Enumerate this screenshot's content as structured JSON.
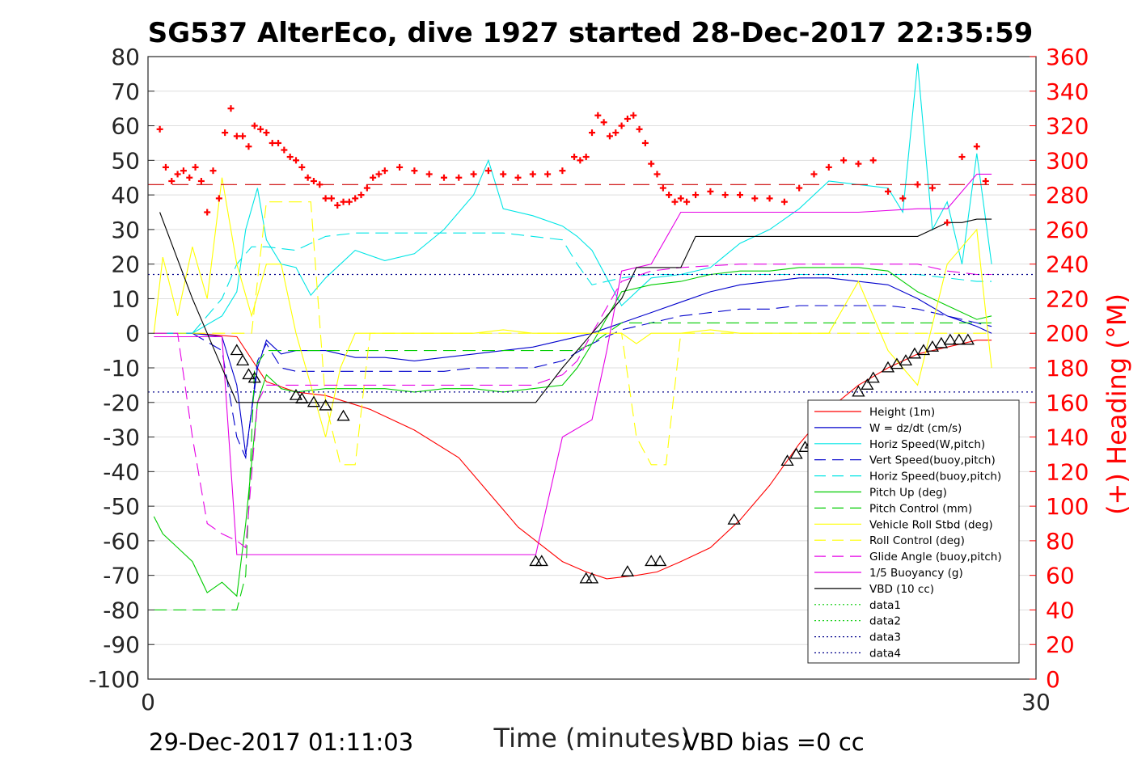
{
  "chart_data": {
    "type": "line",
    "title": "SG537 AlterEco, dive 1927 started 28-Dec-2017 22:35:59",
    "xlabel": "Time (minutes)",
    "ylabel_right": "(+) Heading (°M)",
    "xlim": [
      0,
      30
    ],
    "ylim": [
      -100,
      80
    ],
    "ylim_right": [
      0,
      360
    ],
    "x_ticks": [
      "0",
      "30"
    ],
    "y_ticks": [
      "80",
      "70",
      "60",
      "50",
      "40",
      "30",
      "20",
      "10",
      "0",
      "-10",
      "-20",
      "-30",
      "-40",
      "-50",
      "-60",
      "-70",
      "-80",
      "-90",
      "-100"
    ],
    "y_ticks_right": [
      "360",
      "340",
      "320",
      "300",
      "280",
      "260",
      "240",
      "220",
      "200",
      "180",
      "160",
      "140",
      "120",
      "100",
      "80",
      "60",
      "40",
      "20",
      "0"
    ],
    "grid": true,
    "legend_position": "bottom-right",
    "footer_left": "29-Dec-2017 01:11:03",
    "footer_right": "VBD bias =0 cc",
    "series": [
      {
        "name": "Height (1m)",
        "color": "#ff0000",
        "dash": "solid",
        "x": [
          0.2,
          1.5,
          3.0,
          4.0,
          5.0,
          6.0,
          7.5,
          9.0,
          10.5,
          11.5,
          12.5,
          13.1,
          14.0,
          14.8,
          15.5,
          16.5,
          17.2,
          18.0,
          19.0,
          20.0,
          21.0,
          22.0,
          23.0,
          24.0,
          25.0,
          26.0,
          27.0,
          28.0,
          28.5
        ],
        "y": [
          0,
          0,
          -1,
          -14,
          -17,
          -18,
          -22,
          -28,
          -36,
          -46,
          -56,
          -60,
          -66,
          -69,
          -71,
          -70,
          -69,
          -66,
          -62,
          -54,
          -44,
          -32,
          -22,
          -15,
          -10,
          -6,
          -4,
          -2,
          -2
        ]
      },
      {
        "name": "W = dz/dt (cm/s)",
        "color": "#0000cc",
        "dash": "solid",
        "x": [
          0.2,
          1.5,
          2.5,
          3.0,
          3.3,
          3.7,
          4.0,
          4.5,
          5.0,
          6.0,
          7.0,
          8.0,
          9.0,
          10.0,
          11.0,
          12.0,
          13.0,
          14.0,
          15.0,
          16.0,
          17.0,
          18.0,
          19.0,
          20.0,
          21.0,
          22.0,
          23.0,
          24.0,
          25.0,
          26.0,
          27.0,
          28.0,
          28.5
        ],
        "y": [
          0,
          0,
          -1,
          -15,
          -35,
          -10,
          -2,
          -6,
          -5,
          -5,
          -7,
          -7,
          -8,
          -7,
          -6,
          -5,
          -4,
          -2,
          0,
          3,
          6,
          9,
          12,
          14,
          15,
          16,
          16,
          15,
          14,
          10,
          5,
          2,
          0
        ]
      },
      {
        "name": "Horiz Speed(W,pitch)",
        "color": "#00e5e5",
        "dash": "solid",
        "x": [
          0.2,
          1.5,
          2.5,
          3.0,
          3.3,
          3.7,
          4.0,
          4.5,
          5.0,
          5.5,
          6.0,
          7.0,
          8.0,
          9.0,
          10.0,
          11.0,
          11.5,
          12.0,
          13.0,
          14.0,
          14.5,
          15.0,
          16.0,
          17.0,
          18.0,
          19.0,
          20.0,
          21.0,
          22.0,
          23.0,
          24.0,
          25.0,
          25.5,
          26.0,
          26.5,
          27.0,
          27.5,
          28.0,
          28.5
        ],
        "y": [
          0,
          0,
          5,
          12,
          30,
          42,
          27,
          20,
          19,
          11,
          16,
          24,
          21,
          23,
          30,
          40,
          50,
          36,
          34,
          31,
          28,
          24,
          8,
          16,
          17,
          19,
          26,
          30,
          36,
          44,
          43,
          42,
          35,
          78,
          30,
          38,
          20,
          52,
          20
        ]
      },
      {
        "name": "Vert Speed(buoy,pitch)",
        "color": "#0000cc",
        "dash": "dashed",
        "x": [
          0.2,
          1.5,
          2.5,
          3.0,
          3.3,
          3.7,
          4.0,
          4.5,
          5.0,
          6.0,
          7.0,
          8.0,
          9.0,
          10.0,
          11.0,
          12.0,
          13.0,
          14.0,
          15.0,
          16.0,
          17.0,
          18.0,
          19.0,
          20.0,
          21.0,
          22.0,
          23.0,
          24.0,
          25.0,
          26.0,
          27.0,
          28.0,
          28.5
        ],
        "y": [
          0,
          0,
          -5,
          -30,
          -36,
          -8,
          -3,
          -10,
          -11,
          -11,
          -11,
          -11,
          -11,
          -11,
          -10,
          -10,
          -10,
          -8,
          -3,
          1,
          3,
          5,
          6,
          7,
          7,
          8,
          8,
          8,
          8,
          7,
          5,
          3,
          2
        ]
      },
      {
        "name": "Horiz Speed(buoy,pitch)",
        "color": "#00e5e5",
        "dash": "dashed",
        "x": [
          0.2,
          1.5,
          2.5,
          3.0,
          3.5,
          4.0,
          5.0,
          6.0,
          7.0,
          8.0,
          9.0,
          10.0,
          11.0,
          12.0,
          13.0,
          14.0,
          14.5,
          15.0,
          16.0,
          17.0,
          18.0,
          19.0,
          20.0,
          21.0,
          22.0,
          23.0,
          24.0,
          25.0,
          26.0,
          27.0,
          28.0,
          28.5
        ],
        "y": [
          0,
          0,
          10,
          20,
          25,
          25,
          24,
          28,
          29,
          29,
          29,
          29,
          29,
          29,
          28,
          27,
          20,
          14,
          16,
          17,
          17,
          17,
          17,
          17,
          17,
          17,
          17,
          17,
          17,
          16,
          15,
          15
        ]
      },
      {
        "name": "Pitch Up (deg)",
        "color": "#00cc00",
        "dash": "solid",
        "x": [
          0.2,
          0.5,
          1.0,
          1.5,
          2.0,
          2.5,
          3.0,
          3.3,
          3.7,
          4.0,
          4.5,
          5.0,
          6.0,
          7.0,
          8.0,
          9.0,
          10.0,
          11.0,
          12.0,
          13.0,
          14.0,
          14.5,
          15.0,
          16.0,
          17.0,
          18.0,
          19.0,
          20.0,
          21.0,
          22.0,
          23.0,
          24.0,
          25.0,
          26.0,
          27.0,
          28.0,
          28.5
        ],
        "y": [
          -53,
          -58,
          -62,
          -66,
          -75,
          -72,
          -76,
          -55,
          -20,
          -12,
          -16,
          -17,
          -16,
          -16,
          -16,
          -17,
          -16,
          -16,
          -17,
          -16,
          -15,
          -10,
          -3,
          12,
          14,
          15,
          17,
          18,
          18,
          19,
          19,
          19,
          18,
          12,
          8,
          4,
          5
        ]
      },
      {
        "name": "Pitch Control (mm)",
        "color": "#00cc00",
        "dash": "dashed",
        "x": [
          0.2,
          2.0,
          3.0,
          3.3,
          3.6,
          4.0,
          5.0,
          6.0,
          8.0,
          10.0,
          12.0,
          13.0,
          14.0,
          14.5,
          15.0,
          16.0,
          17.0,
          18.0,
          20.0,
          22.0,
          23.0,
          24.0,
          25.0,
          26.0,
          27.0,
          28.0,
          28.5
        ],
        "y": [
          -80,
          -80,
          -80,
          -70,
          -10,
          -5,
          -5,
          -5,
          -5,
          -5,
          -5,
          -5,
          -5,
          -5,
          -3,
          3,
          3,
          3,
          3,
          3,
          3,
          3,
          3,
          3,
          3,
          3,
          3
        ]
      },
      {
        "name": "Vehicle Roll Stbd (deg)",
        "color": "#ffff00",
        "dash": "solid",
        "x": [
          0.2,
          0.5,
          1.0,
          1.5,
          2.0,
          2.5,
          3.0,
          3.5,
          4.0,
          4.5,
          5.0,
          5.5,
          6.0,
          6.5,
          7.0,
          8.0,
          9.0,
          10.0,
          11.0,
          12.0,
          13.0,
          14.0,
          15.0,
          16.0,
          16.5,
          17.0,
          18.0,
          19.0,
          20.0,
          21.0,
          22.0,
          23.0,
          24.0,
          25.0,
          26.0,
          27.0,
          28.0,
          28.5
        ],
        "y": [
          0,
          22,
          5,
          25,
          10,
          45,
          20,
          5,
          20,
          20,
          0,
          -15,
          -30,
          -10,
          0,
          0,
          0,
          0,
          0,
          1,
          0,
          0,
          0,
          0,
          -3,
          0,
          0,
          1,
          0,
          0,
          0,
          0,
          15,
          -5,
          -15,
          20,
          30,
          -10
        ]
      },
      {
        "name": "Roll Control (deg)",
        "color": "#ffff00",
        "dash": "dashed",
        "x": [
          0.2,
          2.0,
          3.5,
          4.0,
          5.0,
          5.5,
          6.0,
          6.5,
          7.0,
          7.5,
          8.0,
          10.0,
          12.0,
          13.0,
          14.0,
          15.0,
          16.0,
          16.5,
          17.0,
          17.5,
          18.0,
          20.0,
          22.0,
          23.0,
          24.0,
          25.0,
          26.0,
          27.0,
          28.0,
          28.5
        ],
        "y": [
          0,
          0,
          0,
          38,
          38,
          38,
          -20,
          -38,
          -38,
          0,
          0,
          0,
          0,
          0,
          0,
          0,
          0,
          -30,
          -38,
          -38,
          0,
          0,
          0,
          0,
          0,
          0,
          0,
          0,
          0,
          0
        ]
      },
      {
        "name": "Glide Angle (buoy,pitch)",
        "color": "#e500e5",
        "dash": "dashed",
        "x": [
          0.2,
          1.0,
          1.5,
          2.0,
          2.5,
          3.0,
          3.3,
          3.7,
          4.0,
          4.5,
          5.0,
          6.0,
          8.0,
          10.0,
          12.0,
          13.0,
          14.0,
          14.5,
          15.0,
          16.0,
          17.0,
          18.0,
          20.0,
          22.0,
          24.0,
          25.0,
          26.0,
          27.0,
          28.0,
          28.5
        ],
        "y": [
          0,
          0,
          -30,
          -55,
          -58,
          -60,
          -62,
          -20,
          -15,
          -15,
          -15,
          -15,
          -15,
          -15,
          -15,
          -15,
          -12,
          -8,
          0,
          15,
          18,
          19,
          20,
          20,
          20,
          20,
          20,
          18,
          17,
          17
        ]
      },
      {
        "name": "1/5 Buoyancy (g)",
        "color": "#e500e5",
        "dash": "solid",
        "x": [
          0.2,
          1.0,
          2.5,
          3.0,
          3.3,
          3.7,
          4.0,
          5.0,
          7.0,
          9.0,
          11.0,
          13.0,
          13.1,
          14.0,
          15.0,
          15.5,
          16.0,
          17.0,
          18.0,
          19.0,
          20.0,
          22.0,
          24.0,
          26.0,
          27.0,
          28.0,
          28.5
        ],
        "y": [
          -1,
          -1,
          -1,
          -64,
          -64,
          -64,
          -64,
          -64,
          -64,
          -64,
          -64,
          -64,
          -64,
          -30,
          -25,
          -5,
          18,
          20,
          35,
          35,
          35,
          35,
          35,
          36,
          36,
          46,
          46
        ]
      },
      {
        "name": "VBD (10 cc)",
        "color": "#000000",
        "dash": "solid",
        "x": [
          0.4,
          1.5,
          2.0,
          2.5,
          3.0,
          3.5,
          4.0,
          6.0,
          8.0,
          10.0,
          12.0,
          13.1,
          14.0,
          15.0,
          16.0,
          16.5,
          17.0,
          18.0,
          18.5,
          19.0,
          20.0,
          22.0,
          24.0,
          26.0,
          27.0,
          27.5,
          28.0,
          28.5
        ],
        "y": [
          35,
          10,
          0,
          -10,
          -20,
          -20,
          -20,
          -20,
          -20,
          -20,
          -20,
          -20,
          -10,
          0,
          10,
          19,
          19,
          19,
          28,
          28,
          28,
          28,
          28,
          28,
          32,
          32,
          33,
          33
        ]
      },
      {
        "name": "data1",
        "color": "#00cc00",
        "dash": "dotted",
        "x": [],
        "y": []
      },
      {
        "name": "data2",
        "color": "#00cc00",
        "dash": "dotted",
        "x": [],
        "y": []
      },
      {
        "name": "data3",
        "color": "#00008b",
        "dash": "dotted",
        "x": [
          0,
          30
        ],
        "y": [
          17,
          17
        ]
      },
      {
        "name": "data4",
        "color": "#00008b",
        "dash": "dotted",
        "x": [
          0,
          30
        ],
        "y": [
          -17,
          -17
        ]
      }
    ],
    "heading_mean": {
      "color": "#cc0000",
      "dash": "dashed",
      "value": 286
    },
    "heading_points": {
      "color": "#ff0000",
      "marker": "+",
      "x": [
        0.4,
        0.6,
        0.8,
        1.0,
        1.2,
        1.4,
        1.6,
        1.8,
        2.0,
        2.2,
        2.4,
        2.6,
        2.8,
        3.0,
        3.2,
        3.4,
        3.6,
        3.8,
        4.0,
        4.2,
        4.4,
        4.6,
        4.8,
        5.0,
        5.2,
        5.4,
        5.6,
        5.8,
        6.0,
        6.2,
        6.4,
        6.6,
        6.8,
        7.0,
        7.2,
        7.4,
        7.6,
        7.8,
        8.0,
        8.5,
        9.0,
        9.5,
        10.0,
        10.5,
        11.0,
        11.5,
        12.0,
        12.5,
        13.0,
        13.5,
        14.0,
        14.4,
        14.6,
        14.8,
        15.0,
        15.2,
        15.4,
        15.6,
        15.8,
        16.0,
        16.2,
        16.4,
        16.6,
        16.8,
        17.0,
        17.2,
        17.4,
        17.6,
        17.8,
        18.0,
        18.2,
        18.5,
        19.0,
        19.5,
        20.0,
        20.5,
        21.0,
        21.5,
        22.0,
        22.5,
        23.0,
        23.5,
        24.0,
        24.5,
        25.0,
        25.5,
        26.0,
        26.5,
        27.0,
        27.5,
        28.0,
        28.3
      ],
      "y": [
        318,
        296,
        288,
        292,
        294,
        290,
        296,
        288,
        270,
        294,
        278,
        316,
        330,
        314,
        314,
        308,
        320,
        318,
        316,
        310,
        310,
        306,
        302,
        300,
        296,
        290,
        288,
        286,
        278,
        278,
        274,
        276,
        276,
        278,
        280,
        284,
        290,
        292,
        294,
        296,
        294,
        292,
        290,
        290,
        292,
        294,
        292,
        290,
        292,
        292,
        294,
        302,
        300,
        302,
        316,
        326,
        322,
        314,
        316,
        320,
        324,
        326,
        318,
        310,
        298,
        292,
        284,
        280,
        276,
        278,
        276,
        280,
        282,
        280,
        280,
        278,
        278,
        276,
        284,
        292,
        296,
        300,
        298,
        300,
        282,
        278,
        286,
        284,
        264,
        302,
        308,
        288
      ]
    },
    "triangle_markers": [
      [
        3.0,
        -5
      ],
      [
        3.2,
        -8
      ],
      [
        3.4,
        -12
      ],
      [
        3.6,
        -13
      ],
      [
        5.0,
        -18
      ],
      [
        5.2,
        -19
      ],
      [
        5.6,
        -20
      ],
      [
        6.0,
        -21
      ],
      [
        6.6,
        -24
      ],
      [
        13.1,
        -66
      ],
      [
        13.3,
        -66
      ],
      [
        14.8,
        -71
      ],
      [
        15.0,
        -71
      ],
      [
        16.2,
        -69
      ],
      [
        17.0,
        -66
      ],
      [
        17.3,
        -66
      ],
      [
        19.8,
        -54
      ],
      [
        21.6,
        -37
      ],
      [
        21.9,
        -35
      ],
      [
        22.2,
        -33
      ],
      [
        22.4,
        -32
      ],
      [
        23.0,
        -26
      ],
      [
        24.0,
        -17
      ],
      [
        24.3,
        -15
      ],
      [
        24.5,
        -13
      ],
      [
        25.0,
        -10
      ],
      [
        25.3,
        -9
      ],
      [
        25.6,
        -8
      ],
      [
        25.9,
        -6
      ],
      [
        26.2,
        -5
      ],
      [
        26.5,
        -4
      ],
      [
        26.8,
        -3
      ],
      [
        27.1,
        -2
      ],
      [
        27.4,
        -2
      ],
      [
        27.7,
        -2
      ]
    ]
  }
}
